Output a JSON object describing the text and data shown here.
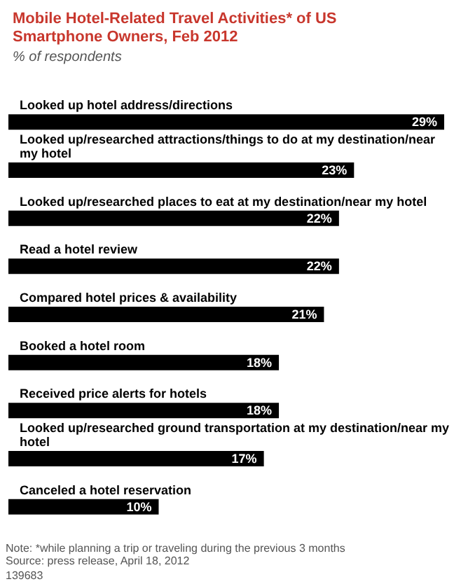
{
  "chart_data": {
    "type": "bar",
    "orientation": "horizontal",
    "title": "Mobile Hotel-Related Travel Activities* of US Smartphone Owners, Feb 2012",
    "subtitle": "% of respondents",
    "categories": [
      "Looked up hotel address/directions",
      "Looked up/researched attractions/things to do at my destination/near my hotel",
      "Looked up/researched places to eat at my destination/near my hotel",
      "Read a hotel review",
      "Compared hotel prices & availability",
      "Booked a hotel room",
      "Received price alerts for hotels",
      "Looked up/researched ground transportation at my destination/near my hotel",
      "Canceled a hotel reservation"
    ],
    "values": [
      29,
      23,
      22,
      22,
      21,
      18,
      18,
      17,
      10
    ],
    "value_labels": [
      "29%",
      "23%",
      "22%",
      "22%",
      "21%",
      "18%",
      "18%",
      "17%",
      "10%"
    ],
    "color": "#000000",
    "annotations": [
      "Note: *while planning a trip or traveling during the previous 3 months",
      "Source: press release, April 18, 2012",
      "139683"
    ]
  }
}
